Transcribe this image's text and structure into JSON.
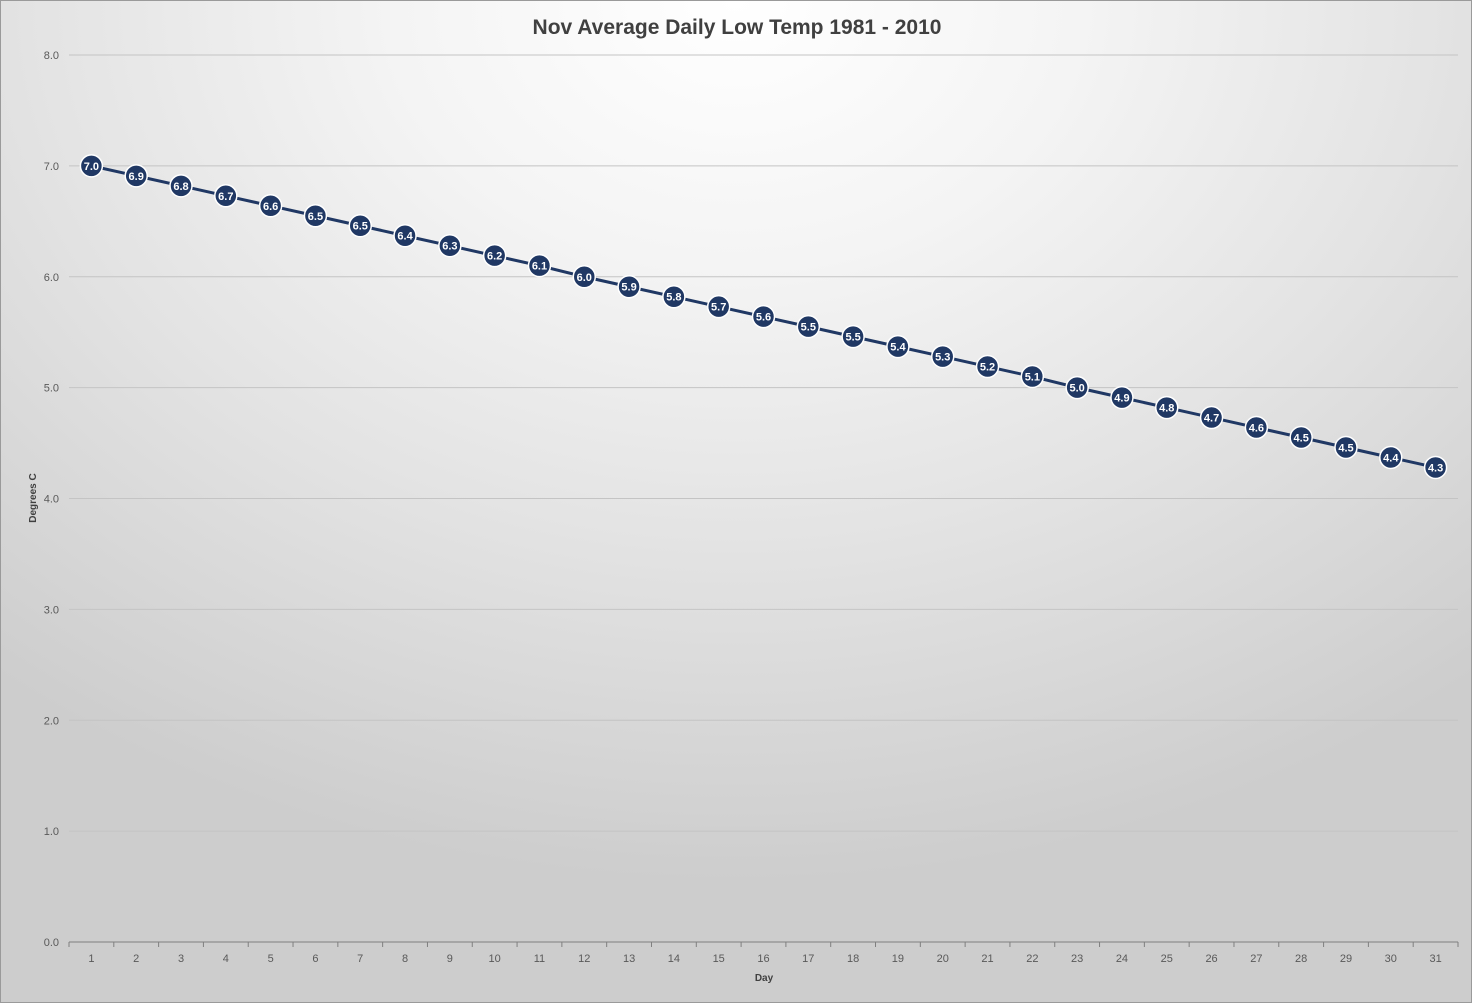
{
  "chart_data": {
    "type": "line",
    "title": "Nov Average Daily Low Temp 1981 - 2010",
    "xlabel": "Day",
    "ylabel": "Degrees C",
    "categories": [
      "1",
      "2",
      "3",
      "4",
      "5",
      "6",
      "7",
      "8",
      "9",
      "10",
      "11",
      "12",
      "13",
      "14",
      "15",
      "16",
      "17",
      "18",
      "19",
      "20",
      "21",
      "22",
      "23",
      "24",
      "25",
      "26",
      "27",
      "28",
      "29",
      "30",
      "31"
    ],
    "series": [
      {
        "values": [
          7.0,
          6.91,
          6.82,
          6.73,
          6.64,
          6.55,
          6.46,
          6.37,
          6.28,
          6.19,
          6.1,
          6.0,
          5.91,
          5.82,
          5.73,
          5.64,
          5.55,
          5.46,
          5.37,
          5.28,
          5.19,
          5.1,
          5.0,
          4.91,
          4.82,
          4.73,
          4.64,
          4.55,
          4.46,
          4.37,
          4.28
        ],
        "labels": [
          "7.0",
          "6.9",
          "6.8",
          "6.7",
          "6.6",
          "6.5",
          "6.5",
          "6.4",
          "6.3",
          "6.2",
          "6.1",
          "6.0",
          "5.9",
          "5.8",
          "5.7",
          "5.6",
          "5.5",
          "5.5",
          "5.4",
          "5.3",
          "5.2",
          "5.1",
          "5.0",
          "4.9",
          "4.8",
          "4.7",
          "4.6",
          "4.5",
          "4.5",
          "4.4",
          "4.3"
        ]
      }
    ],
    "ylim": [
      0,
      8
    ],
    "yticks": [
      "0.0",
      "1.0",
      "2.0",
      "3.0",
      "4.0",
      "5.0",
      "6.0",
      "7.0",
      "8.0"
    ],
    "grid": true,
    "legend": "none",
    "colors": {
      "series": "#203864",
      "marker_outline": "#ffffff",
      "gridline": "#c4c4c4"
    }
  }
}
